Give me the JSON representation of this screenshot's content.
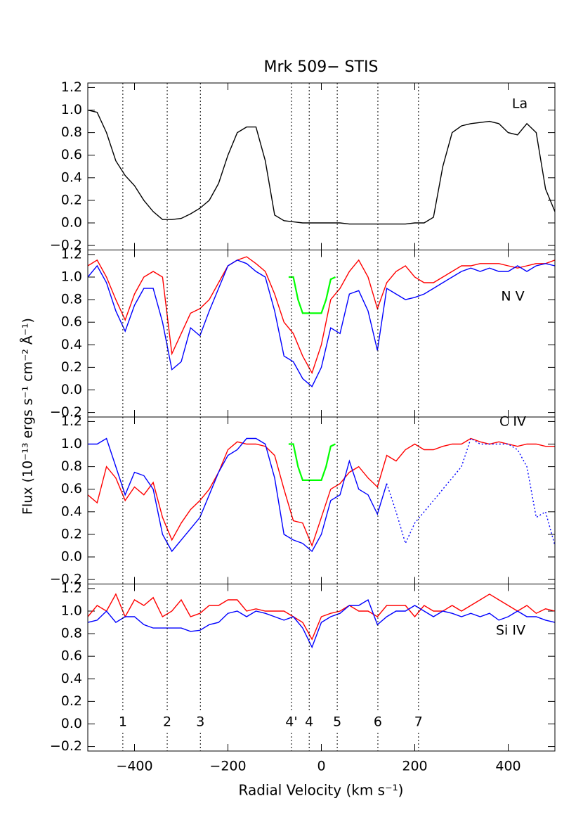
{
  "chart_data": [
    {
      "type": "line",
      "title": "Mrk 509− STIS",
      "ylabel": "Flux (10⁻¹³ ergs s⁻¹ cm⁻² Å⁻¹)",
      "label": "La",
      "ylim": [
        -0.24,
        1.24
      ],
      "yticks": [
        {
          "value": -0.2,
          "label": "−0.2"
        },
        {
          "value": 0,
          "label": "0.0"
        },
        0.2,
        0.4,
        0.6,
        0.8,
        {
          "value": 1,
          "label": "1.0"
        },
        1.2
      ],
      "x": [
        -500,
        -480,
        -460,
        -440,
        -420,
        -400,
        -380,
        -360,
        -340,
        -320,
        -300,
        -280,
        -260,
        -240,
        -220,
        -200,
        -180,
        -160,
        -140,
        -120,
        -100,
        -80,
        -60,
        -40,
        -20,
        0,
        20,
        40,
        60,
        80,
        100,
        120,
        140,
        160,
        180,
        200,
        220,
        240,
        260,
        280,
        300,
        320,
        340,
        360,
        380,
        400,
        420,
        440,
        460,
        480,
        500
      ],
      "series": [
        {
          "color": "#000000",
          "values": [
            1.0,
            0.98,
            0.8,
            0.55,
            0.42,
            0.33,
            0.2,
            0.1,
            0.03,
            0.03,
            0.04,
            0.08,
            0.13,
            0.2,
            0.35,
            0.6,
            0.8,
            0.85,
            0.85,
            0.55,
            0.07,
            0.02,
            0.01,
            0,
            0,
            0,
            0,
            0,
            -0.01,
            -0.01,
            -0.01,
            -0.01,
            -0.01,
            -0.01,
            -0.01,
            0,
            0,
            0.05,
            0.5,
            0.8,
            0.86,
            0.88,
            0.89,
            0.9,
            0.88,
            0.8,
            0.78,
            0.88,
            0.8,
            0.3,
            0.1
          ]
        }
      ]
    },
    {
      "type": "line",
      "label": "N V",
      "ylim": [
        -0.24,
        1.24
      ],
      "yticks": [
        {
          "value": -0.2,
          "label": "−0.2"
        },
        {
          "value": 0,
          "label": "0.0"
        },
        0.2,
        0.4,
        0.6,
        0.8,
        {
          "value": 1,
          "label": "1.0"
        },
        1.2
      ],
      "x": [
        -500,
        -480,
        -460,
        -440,
        -420,
        -400,
        -380,
        -360,
        -340,
        -320,
        -300,
        -280,
        -260,
        -240,
        -220,
        -200,
        -180,
        -160,
        -140,
        -120,
        -100,
        -80,
        -60,
        -40,
        -20,
        0,
        20,
        40,
        60,
        80,
        100,
        120,
        140,
        160,
        180,
        200,
        220,
        240,
        260,
        280,
        300,
        320,
        340,
        360,
        380,
        400,
        420,
        440,
        460,
        480,
        500
      ],
      "series": [
        {
          "color": "#ff0000",
          "values": [
            1.1,
            1.15,
            1.0,
            0.8,
            0.62,
            0.85,
            1.0,
            1.05,
            1.0,
            0.32,
            0.5,
            0.68,
            0.72,
            0.8,
            0.95,
            1.1,
            1.15,
            1.18,
            1.12,
            1.05,
            0.85,
            0.6,
            0.5,
            0.3,
            0.15,
            0.4,
            0.8,
            0.9,
            1.05,
            1.15,
            1.0,
            0.72,
            0.95,
            1.05,
            1.1,
            1.0,
            0.95,
            0.95,
            1.0,
            1.05,
            1.1,
            1.1,
            1.12,
            1.12,
            1.12,
            1.1,
            1.08,
            1.1,
            1.12,
            1.12,
            1.15
          ]
        },
        {
          "color": "#0000ff",
          "values": [
            1.0,
            1.1,
            0.95,
            0.7,
            0.52,
            0.75,
            0.9,
            0.9,
            0.6,
            0.18,
            0.25,
            0.55,
            0.48,
            0.7,
            0.9,
            1.1,
            1.15,
            1.12,
            1.05,
            1.0,
            0.7,
            0.3,
            0.25,
            0.1,
            0.03,
            0.2,
            0.55,
            0.5,
            0.85,
            0.88,
            0.7,
            0.35,
            0.9,
            0.85,
            0.8,
            0.82,
            0.85,
            0.9,
            0.95,
            1.0,
            1.05,
            1.08,
            1.05,
            1.08,
            1.05,
            1.05,
            1.1,
            1.05,
            1.1,
            1.12,
            1.1
          ]
        },
        {
          "color": "#00ff00",
          "x": [
            -70,
            -60,
            -50,
            -40,
            -20,
            0,
            10,
            20,
            30
          ],
          "values": [
            1.0,
            1.0,
            0.8,
            0.68,
            0.68,
            0.68,
            0.8,
            0.98,
            1.0
          ]
        }
      ]
    },
    {
      "type": "line",
      "label": "C IV",
      "ylim": [
        -0.24,
        1.24
      ],
      "yticks": [
        {
          "value": -0.2,
          "label": "−0.2"
        },
        {
          "value": 0,
          "label": "0.0"
        },
        0.2,
        0.4,
        0.6,
        0.8,
        {
          "value": 1,
          "label": "1.0"
        },
        1.2
      ],
      "x": [
        -500,
        -480,
        -460,
        -440,
        -420,
        -400,
        -380,
        -360,
        -340,
        -320,
        -300,
        -280,
        -260,
        -240,
        -220,
        -200,
        -180,
        -160,
        -140,
        -120,
        -100,
        -80,
        -60,
        -40,
        -20,
        0,
        20,
        40,
        60,
        80,
        100,
        120,
        140,
        160,
        180,
        200,
        220,
        240,
        260,
        280,
        300,
        320,
        340,
        360,
        380,
        400,
        420,
        440,
        460,
        480,
        500
      ],
      "series": [
        {
          "color": "#ff0000",
          "values": [
            0.55,
            0.48,
            0.8,
            0.7,
            0.5,
            0.62,
            0.55,
            0.66,
            0.35,
            0.15,
            0.3,
            0.42,
            0.5,
            0.6,
            0.75,
            0.95,
            1.02,
            1.0,
            1.0,
            0.98,
            0.9,
            0.6,
            0.32,
            0.3,
            0.1,
            0.35,
            0.6,
            0.65,
            0.75,
            0.8,
            0.7,
            0.62,
            0.9,
            0.85,
            0.95,
            1.0,
            0.95,
            0.95,
            0.98,
            1.0,
            1.0,
            1.05,
            1.02,
            1.0,
            1.02,
            1.0,
            0.98,
            1.0,
            1.0,
            0.98,
            0.98
          ]
        },
        {
          "color": "#0000ff",
          "x": [
            -500,
            -480,
            -460,
            -440,
            -420,
            -400,
            -380,
            -360,
            -340,
            -320,
            -300,
            -280,
            -260,
            -240,
            -220,
            -200,
            -180,
            -160,
            -140,
            -120,
            -100,
            -80,
            -60,
            -40,
            -20,
            0,
            20,
            40,
            60,
            80,
            100,
            120,
            140
          ],
          "values": [
            1.0,
            1.0,
            1.05,
            0.8,
            0.55,
            0.75,
            0.72,
            0.6,
            0.2,
            0.05,
            0.15,
            0.25,
            0.35,
            0.55,
            0.75,
            0.9,
            0.95,
            1.05,
            1.05,
            1.0,
            0.7,
            0.2,
            0.15,
            0.12,
            0.05,
            0.2,
            0.5,
            0.55,
            0.85,
            0.6,
            0.55,
            0.38,
            0.65
          ]
        },
        {
          "color": "#0000ff",
          "dash": "dotted",
          "x": [
            140,
            160,
            180,
            200,
            220,
            240,
            260,
            280,
            300,
            320,
            340,
            360,
            380,
            400,
            420,
            440,
            460,
            480,
            500
          ],
          "values": [
            0.65,
            0.4,
            0.12,
            0.3,
            0.4,
            0.5,
            0.6,
            0.7,
            0.8,
            1.05,
            1.0,
            1.0,
            1.0,
            1.0,
            0.95,
            0.8,
            0.35,
            0.4,
            0.1
          ]
        },
        {
          "color": "#00ff00",
          "x": [
            -70,
            -60,
            -50,
            -40,
            -20,
            0,
            10,
            20,
            30
          ],
          "values": [
            1.0,
            1.0,
            0.8,
            0.68,
            0.68,
            0.68,
            0.8,
            0.98,
            1.0
          ]
        }
      ]
    },
    {
      "type": "line",
      "label": "Si IV",
      "xlabel": "Radial Velocity (km s⁻¹)",
      "xlim": [
        -500,
        500
      ],
      "xticks": [
        {
          "value": -400,
          "label": "−400"
        },
        {
          "value": -200,
          "label": "−200"
        },
        0,
        200,
        400
      ],
      "ylim": [
        -0.24,
        1.24
      ],
      "yticks": [
        {
          "value": -0.2,
          "label": "−0.2"
        },
        {
          "value": 0,
          "label": "0.0"
        },
        0.2,
        0.4,
        0.6,
        0.8,
        {
          "value": 1,
          "label": "1.0"
        },
        1.2
      ],
      "components": {
        "labels": [
          "1",
          "2",
          "3",
          "4'",
          "4",
          "5",
          "6",
          "7"
        ],
        "x": [
          -425,
          -330,
          -259,
          -64,
          -26,
          34,
          121,
          208
        ]
      },
      "x": [
        -500,
        -480,
        -460,
        -440,
        -420,
        -400,
        -380,
        -360,
        -340,
        -320,
        -300,
        -280,
        -260,
        -240,
        -220,
        -200,
        -180,
        -160,
        -140,
        -120,
        -100,
        -80,
        -60,
        -40,
        -20,
        0,
        20,
        40,
        60,
        80,
        100,
        120,
        140,
        160,
        180,
        200,
        220,
        240,
        260,
        280,
        300,
        320,
        340,
        360,
        380,
        400,
        420,
        440,
        460,
        480,
        500
      ],
      "series": [
        {
          "color": "#ff0000",
          "values": [
            0.95,
            1.05,
            1.0,
            1.15,
            0.95,
            1.1,
            1.05,
            1.12,
            0.95,
            1.0,
            1.1,
            0.95,
            0.98,
            1.05,
            1.05,
            1.1,
            1.1,
            1.0,
            1.02,
            1.0,
            1.0,
            1.0,
            0.95,
            0.9,
            0.75,
            0.95,
            0.98,
            1.0,
            1.05,
            1.0,
            1.0,
            0.95,
            1.05,
            1.05,
            1.05,
            0.95,
            1.05,
            1.0,
            1.0,
            1.05,
            1.0,
            1.05,
            1.1,
            1.15,
            1.1,
            1.05,
            1.0,
            1.05,
            0.98,
            1.02,
            1.0
          ]
        },
        {
          "color": "#0000ff",
          "values": [
            0.9,
            0.92,
            1.0,
            0.9,
            0.95,
            0.95,
            0.88,
            0.85,
            0.85,
            0.85,
            0.85,
            0.82,
            0.83,
            0.88,
            0.9,
            0.98,
            1.0,
            0.95,
            1.0,
            0.98,
            0.95,
            0.92,
            0.95,
            0.85,
            0.68,
            0.9,
            0.95,
            0.98,
            1.05,
            1.05,
            1.1,
            0.88,
            0.95,
            1.0,
            1.0,
            1.05,
            1.0,
            0.95,
            1.0,
            0.98,
            0.95,
            0.98,
            0.95,
            0.98,
            0.92,
            0.95,
            1.0,
            0.95,
            0.95,
            0.92,
            0.9
          ]
        }
      ]
    }
  ]
}
